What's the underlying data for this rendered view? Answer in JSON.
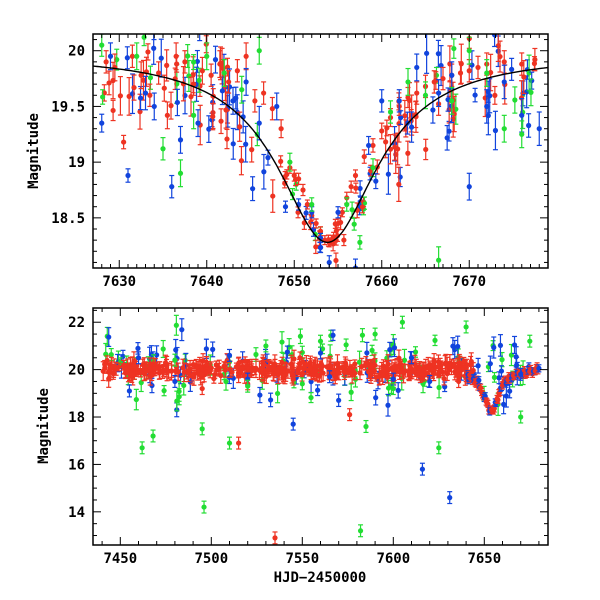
{
  "chart_data": [
    {
      "type": "scatter",
      "panel": "top",
      "ylabel": "Magnitude",
      "xlabel": "",
      "xlim": [
        7627,
        7679
      ],
      "ylim": [
        20.15,
        18.05
      ],
      "y_inverted": true,
      "x_ticks": [
        7630,
        7640,
        7650,
        7660,
        7670
      ],
      "x_tick_labels": [
        "7630",
        "7640",
        "7650",
        "7660",
        "7670"
      ],
      "y_ticks": [
        18.5,
        19,
        19.5,
        20
      ],
      "y_tick_labels": [
        "18.5",
        "19",
        "19.5",
        "20"
      ],
      "series": [
        {
          "color": "#ee3322",
          "values": [
            [
              7628.5,
              19.9,
              0.1
            ],
            [
              7629.5,
              19.85,
              0.12
            ],
            [
              7630.5,
              19.18,
              0.06
            ],
            [
              7631.5,
              19.95,
              0.1
            ],
            [
              7632.5,
              19.78,
              0.12
            ],
            [
              7633.5,
              19.6,
              0.1
            ],
            [
              7634.5,
              19.8,
              0.1
            ],
            [
              7635.5,
              19.42,
              0.12
            ],
            [
              7636.5,
              19.95,
              0.12
            ],
            [
              7637.5,
              19.9,
              0.1
            ],
            [
              7638.5,
              19.7,
              0.1
            ],
            [
              7639.5,
              19.82,
              0.12
            ],
            [
              7640.5,
              19.78,
              0.1
            ],
            [
              7641.5,
              19.88,
              0.12
            ],
            [
              7642.5,
              19.72,
              0.1
            ],
            [
              7643.5,
              19.82,
              0.1
            ],
            [
              7644.5,
              19.95,
              0.12
            ],
            [
              7645.5,
              19.55,
              0.1
            ],
            [
              7646.5,
              19.62,
              0.1
            ],
            [
              7647.5,
              19.48,
              0.1
            ],
            [
              7648.5,
              19.3,
              0.08
            ],
            [
              7649.5,
              18.95,
              0.05
            ],
            [
              7650.0,
              18.88,
              0.05
            ],
            [
              7650.5,
              18.85,
              0.05
            ],
            [
              7651.0,
              18.75,
              0.05
            ],
            [
              7651.5,
              18.62,
              0.04
            ],
            [
              7652.0,
              18.52,
              0.04
            ],
            [
              7652.5,
              18.45,
              0.04
            ],
            [
              7653.0,
              18.38,
              0.04
            ],
            [
              7653.5,
              18.3,
              0.04
            ],
            [
              7654.0,
              18.28,
              0.04
            ],
            [
              7654.5,
              18.33,
              0.04
            ],
            [
              7655.0,
              18.45,
              0.04
            ],
            [
              7655.5,
              18.55,
              0.04
            ],
            [
              7656.0,
              18.68,
              0.05
            ],
            [
              7656.5,
              18.78,
              0.05
            ],
            [
              7657.0,
              18.88,
              0.05
            ],
            [
              7658.0,
              19.05,
              0.06
            ],
            [
              7659.0,
              19.15,
              0.06
            ],
            [
              7660.0,
              19.28,
              0.07
            ],
            [
              7661.0,
              19.4,
              0.08
            ],
            [
              7662.0,
              19.5,
              0.08
            ],
            [
              7663.0,
              19.58,
              0.09
            ],
            [
              7664.0,
              19.62,
              0.1
            ],
            [
              7665.0,
              19.68,
              0.1
            ],
            [
              7666.0,
              19.72,
              0.1
            ],
            [
              7667.0,
              19.75,
              0.1
            ],
            [
              7668.0,
              19.78,
              0.1
            ],
            [
              7669.0,
              19.8,
              0.1
            ],
            [
              7670.0,
              19.82,
              0.1
            ],
            [
              7671.0,
              19.85,
              0.1
            ],
            [
              7672.0,
              19.88,
              0.1
            ],
            [
              7674.0,
              19.9,
              0.1
            ],
            [
              7676.0,
              19.88,
              0.1
            ],
            [
              7677.5,
              19.92,
              0.1
            ]
          ]
        },
        {
          "color": "#1144dd",
          "values": [
            [
              7628.0,
              19.35,
              0.08
            ],
            [
              7629.0,
              19.95,
              0.12
            ],
            [
              7631.0,
              18.88,
              0.06
            ],
            [
              7633.0,
              19.62,
              0.15
            ],
            [
              7634.0,
              19.5,
              0.12
            ],
            [
              7636.0,
              18.78,
              0.1
            ],
            [
              7637.0,
              19.2,
              0.12
            ],
            [
              7639.0,
              19.35,
              0.12
            ],
            [
              7641.0,
              19.92,
              0.12
            ],
            [
              7643.0,
              19.55,
              0.12
            ],
            [
              7644.5,
              19.72,
              0.12
            ],
            [
              7646.0,
              19.35,
              0.15
            ],
            [
              7648.0,
              19.5,
              0.12
            ],
            [
              7649.0,
              18.6,
              0.05
            ],
            [
              7650.5,
              18.62,
              0.05
            ],
            [
              7652.0,
              18.55,
              0.05
            ],
            [
              7653.0,
              18.32,
              0.04
            ],
            [
              7654.0,
              18.1,
              0.06
            ],
            [
              7655.0,
              18.55,
              0.05
            ],
            [
              7657.0,
              18.05,
              0.08
            ],
            [
              7658.5,
              19.15,
              0.08
            ],
            [
              7660.0,
              19.55,
              0.1
            ],
            [
              7662.0,
              19.55,
              0.1
            ],
            [
              7664.0,
              19.85,
              0.12
            ],
            [
              7666.5,
              19.62,
              0.12
            ],
            [
              7668.0,
              19.78,
              0.12
            ],
            [
              7670.0,
              18.78,
              0.12
            ],
            [
              7672.0,
              19.5,
              0.15
            ],
            [
              7674.0,
              19.72,
              0.15
            ],
            [
              7676.0,
              19.42,
              0.15
            ],
            [
              7678.0,
              19.3,
              0.15
            ]
          ]
        },
        {
          "color": "#22dd33",
          "values": [
            [
              7628.0,
              20.05,
              0.1
            ],
            [
              7632.0,
              19.95,
              0.12
            ],
            [
              7635.0,
              19.12,
              0.1
            ],
            [
              7637.0,
              18.9,
              0.12
            ],
            [
              7638.5,
              19.42,
              0.12
            ],
            [
              7640.0,
              19.95,
              0.12
            ],
            [
              7642.0,
              19.8,
              0.12
            ],
            [
              7644.0,
              19.65,
              0.12
            ],
            [
              7646.0,
              20.0,
              0.12
            ],
            [
              7649.5,
              19.0,
              0.08
            ],
            [
              7652.0,
              18.62,
              0.06
            ],
            [
              7656.0,
              18.62,
              0.06
            ],
            [
              7657.5,
              18.28,
              0.06
            ],
            [
              7659.0,
              18.95,
              0.08
            ],
            [
              7661.0,
              19.45,
              0.1
            ],
            [
              7663.0,
              19.72,
              0.12
            ],
            [
              7665.0,
              19.6,
              0.12
            ],
            [
              7666.5,
              18.12,
              0.12
            ],
            [
              7668.0,
              19.55,
              0.12
            ],
            [
              7670.0,
              20.0,
              0.12
            ],
            [
              7672.0,
              19.8,
              0.12
            ],
            [
              7674.0,
              19.3,
              0.12
            ],
            [
              7676.0,
              19.25,
              0.12
            ]
          ]
        }
      ],
      "model_curve": {
        "color": "#000000",
        "peak_x": 7653.8,
        "peak_mag": 18.28,
        "base_mag": 19.97,
        "width": 7.0
      }
    },
    {
      "type": "scatter",
      "panel": "bottom",
      "ylabel": "Magnitude",
      "xlabel": "HJD−2450000",
      "xlim": [
        7435,
        7685
      ],
      "ylim": [
        22.6,
        12.6
      ],
      "y_inverted": true,
      "x_ticks": [
        7450,
        7500,
        7550,
        7600,
        7650
      ],
      "x_tick_labels": [
        "7450",
        "7500",
        "7550",
        "7600",
        "7650"
      ],
      "y_ticks": [
        14,
        16,
        18,
        20,
        22
      ],
      "y_tick_labels": [
        "14",
        "16",
        "18",
        "20",
        "22"
      ],
      "series": [
        {
          "color": "#ee3322",
          "values": [
            [
              7535,
              12.9
            ],
            [
              7515,
              16.9
            ],
            [
              7576,
              18.1
            ],
            [
              7495,
              19.2
            ],
            [
              7520,
              19.4
            ],
            [
              7545,
              19.6
            ],
            [
              7600,
              19.5
            ]
          ]
        },
        {
          "color": "#1144dd",
          "values": [
            [
              7631,
              14.6
            ],
            [
              7616,
              15.8
            ],
            [
              7545,
              17.7
            ],
            [
              7455,
              19.1
            ],
            [
              7480,
              19.5
            ],
            [
              7520,
              19.6
            ],
            [
              7565,
              19.7
            ],
            [
              7600,
              19.6
            ],
            [
              7620,
              19.5
            ],
            [
              7670,
              19.8
            ],
            [
              7460,
              20.5
            ],
            [
              7510,
              20.6
            ],
            [
              7560,
              20.7
            ],
            [
              7610,
              20.5
            ]
          ]
        },
        {
          "color": "#22dd33",
          "values": [
            [
              7582,
              13.2
            ],
            [
              7496,
              14.2
            ],
            [
              7625,
              16.7
            ],
            [
              7462,
              16.7
            ],
            [
              7468,
              17.2
            ],
            [
              7510,
              16.9
            ],
            [
              7495,
              17.5
            ],
            [
              7585,
              17.6
            ],
            [
              7670,
              18.0
            ],
            [
              7520,
              19.3
            ],
            [
              7550,
              19.4
            ],
            [
              7600,
              19.2
            ],
            [
              7480,
              20.4
            ],
            [
              7530,
              21.0
            ],
            [
              7560,
              21.2
            ],
            [
              7590,
              21.5
            ],
            [
              7605,
              22.0
            ],
            [
              7640,
              21.8
            ],
            [
              7675,
              21.2
            ]
          ]
        }
      ],
      "bulk": {
        "x_start": 7440,
        "x_end": 7645,
        "mean_mag": 20.0,
        "peak_x": 7653.8,
        "peak_mag": 18.2
      }
    }
  ]
}
